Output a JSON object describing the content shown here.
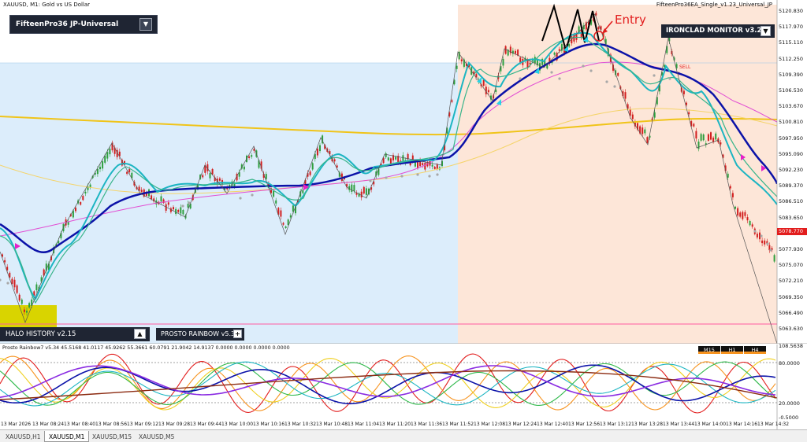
{
  "header": {
    "symbol_label": "XAUUSD, M1:  Gold vs US Dollar",
    "ea_label": "FifteenPro36EA_Single_v1.23_Universal_JP"
  },
  "panels": {
    "fifteen": {
      "title": "FifteenPro36 JP-Universal",
      "toggle": "▼"
    },
    "ironclad": {
      "title": "IRONCLAD MONITOR v3.26",
      "toggle": "▼"
    },
    "halo": {
      "title": "HALO HISTORY v2.15",
      "toggle": "▲"
    },
    "prosto": {
      "title": "PROSTO RAINBOW v5.34",
      "toggle": "+"
    }
  },
  "annotations": {
    "entry": "Entry",
    "sell": "SELL"
  },
  "price_axis": [
    "5120.830",
    "5117.970",
    "5115.110",
    "5112.250",
    "5109.390",
    "5106.530",
    "5103.670",
    "5100.810",
    "5097.950",
    "5095.090",
    "5092.230",
    "5089.370",
    "5086.510",
    "5083.650",
    "5080.790",
    "5077.930",
    "5075.070",
    "5072.210",
    "5069.350",
    "5066.490",
    "5063.630"
  ],
  "current_price": "5078.770",
  "time_axis": [
    "13 Mar 2026",
    "13 Mar 08:24",
    "13 Mar 08:40",
    "13 Mar 08:56",
    "13 Mar 09:12",
    "13 Mar 09:28",
    "13 Mar 09:44",
    "13 Mar 10:00",
    "13 Mar 10:16",
    "13 Mar 10:32",
    "13 Mar 10:48",
    "13 Mar 11:04",
    "13 Mar 11:20",
    "13 Mar 11:36",
    "13 Mar 11:52",
    "13 Mar 12:08",
    "13 Mar 12:24",
    "13 Mar 12:40",
    "13 Mar 12:56",
    "13 Mar 13:12",
    "13 Mar 13:28",
    "13 Mar 13:44",
    "13 Mar 14:00",
    "13 Mar 14:16",
    "13 Mar 14:32"
  ],
  "oscillator": {
    "title": "Prosto Rainbow7 v5.34 45.5168 41.0117 45.9262 55.3661 60.0791 21.9042 14.9137 0.0000 0.0000 0.0000 0.0000",
    "axis": [
      "108.5638",
      "80.0000",
      "20.0000",
      "-0.5000"
    ],
    "timeframes": [
      "M15",
      "H1",
      "H4"
    ]
  },
  "tabs": [
    "XAUUSD,H1",
    "XAUUSD,M1",
    "XAUUSD,M15",
    "XAUUSD,M5"
  ],
  "active_tab": 1,
  "colors": {
    "blue_zone": "#dbeefc",
    "peach_zone": "#fde6d8",
    "bull": "#2e9e3e",
    "bear": "#d21f1f",
    "main_ma": "#0b12a8",
    "fast_ma": "#1cb5c2",
    "slow_ma": "#f0c419",
    "pink_ma": "#e24fd3",
    "panel_dark": "#1f2533",
    "halo_box": "#d9d400"
  }
}
